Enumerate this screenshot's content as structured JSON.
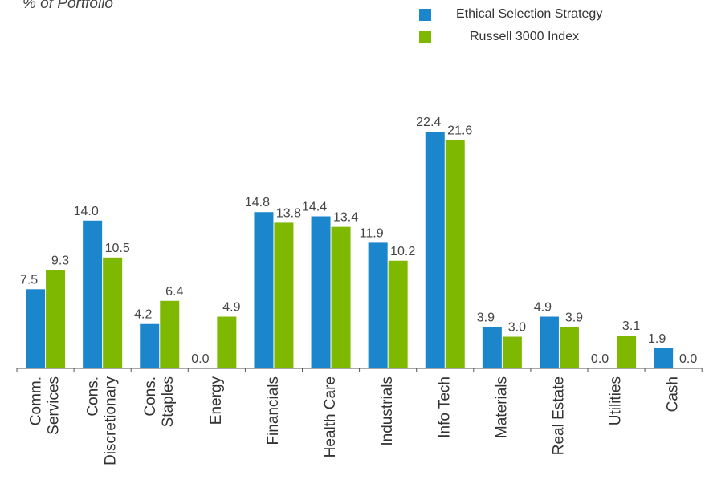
{
  "chart_title": "% of Portfolio",
  "legend": [
    {
      "label": "Ethical Selection Strategy",
      "color": "#1B86CB"
    },
    {
      "label": "Russell 3000 Index",
      "color": "#7FB800"
    }
  ],
  "chart_data": {
    "type": "bar",
    "title": "% of Portfolio",
    "categories": [
      [
        "Comm.",
        "Services"
      ],
      [
        "Cons.",
        "Discretionary"
      ],
      [
        "Cons.",
        "Staples"
      ],
      [
        "Energy"
      ],
      [
        "Financials"
      ],
      [
        "Health Care"
      ],
      [
        "Industrials"
      ],
      [
        "Info Tech"
      ],
      [
        "Materials"
      ],
      [
        "Real Estate"
      ],
      [
        "Utilities"
      ],
      [
        "Cash"
      ]
    ],
    "series": [
      {
        "name": "Ethical Selection Strategy",
        "color": "#1B86CB",
        "values": [
          7.5,
          14.0,
          4.2,
          0.0,
          14.8,
          14.4,
          11.9,
          22.4,
          3.9,
          4.9,
          0.0,
          1.9
        ]
      },
      {
        "name": "Russell 3000 Index",
        "color": "#7FB800",
        "values": [
          9.3,
          10.5,
          6.4,
          4.9,
          13.8,
          13.4,
          10.2,
          21.6,
          3.0,
          3.9,
          3.1,
          0.0
        ]
      }
    ],
    "ylim": [
      0,
      24
    ],
    "grid": false,
    "legend_position": "top-right"
  }
}
